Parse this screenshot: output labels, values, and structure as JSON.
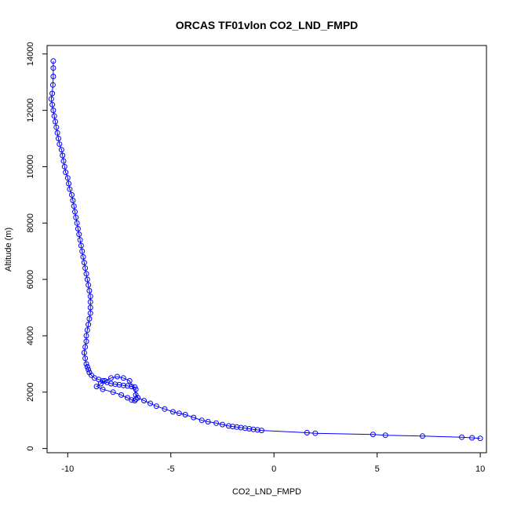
{
  "chart_data": {
    "type": "scatter",
    "title": "ORCAS TF01vlon CO2_LND_FMPD",
    "xlabel": "CO2_LND_FMPD",
    "ylabel": "Altitude (m)",
    "xlim": [
      -11.0,
      10.3
    ],
    "ylim": [
      -150,
      14300
    ],
    "xticks": [
      -10,
      -5,
      0,
      5,
      10
    ],
    "yticks": [
      0,
      2000,
      4000,
      6000,
      8000,
      10000,
      12000,
      14000
    ],
    "grid": false,
    "legend": "none",
    "color": "#0000ff",
    "series": [
      {
        "x": [
          -10.7,
          -10.7,
          -10.7,
          -10.72,
          -10.75,
          -10.8,
          -10.75,
          -10.7,
          -10.65,
          -10.6,
          -10.55,
          -10.5,
          -10.45,
          -10.4,
          -10.3,
          -10.25,
          -10.2,
          -10.15,
          -10.1,
          -10.0,
          -9.95,
          -9.9,
          -9.8,
          -9.75,
          -9.7,
          -9.65,
          -9.6,
          -9.55,
          -9.5,
          -9.45,
          -9.4,
          -9.35,
          -9.3,
          -9.25,
          -9.2,
          -9.15,
          -9.1,
          -9.05,
          -9.0,
          -8.95,
          -8.9,
          -8.9,
          -8.9,
          -8.9,
          -8.95,
          -9.0,
          -9.05,
          -9.1,
          -9.1,
          -9.15,
          -9.2,
          -9.15,
          -9.1,
          -9.05,
          -9.0,
          -8.95,
          -8.85,
          -8.7,
          -8.5,
          -8.3,
          -8.1,
          -7.9,
          -7.7,
          -7.5,
          -7.3,
          -7.1,
          -6.9,
          -6.75,
          -6.7,
          -6.7,
          -6.7,
          -6.75,
          -6.9,
          -7.1,
          -7.4,
          -7.8,
          -8.3,
          -8.6,
          -8.4,
          -8.2,
          -7.9,
          -7.6,
          -7.3,
          -7.0,
          -6.6,
          -6.3,
          -6.0,
          -5.7,
          -5.3,
          -4.9,
          -4.6,
          -4.3,
          -3.9,
          -3.5,
          -3.2,
          -2.8,
          -2.5,
          -2.2,
          -2.0,
          -1.8,
          -1.6,
          -1.4,
          -1.2,
          -1.0,
          -0.8,
          -0.6,
          1.6,
          2.0,
          4.8,
          5.4,
          7.2,
          9.1,
          9.6,
          10.0
        ],
        "y": [
          13750,
          13500,
          13200,
          12900,
          12600,
          12400,
          12200,
          12000,
          11800,
          11600,
          11400,
          11200,
          11000,
          10800,
          10600,
          10400,
          10200,
          10000,
          9800,
          9600,
          9400,
          9200,
          9000,
          8800,
          8600,
          8400,
          8200,
          8000,
          7800,
          7600,
          7400,
          7200,
          7000,
          6800,
          6600,
          6400,
          6200,
          6000,
          5800,
          5600,
          5400,
          5200,
          5000,
          4800,
          4600,
          4400,
          4200,
          4000,
          3800,
          3600,
          3400,
          3200,
          3000,
          2900,
          2800,
          2700,
          2600,
          2500,
          2450,
          2400,
          2350,
          2300,
          2280,
          2260,
          2240,
          2220,
          2200,
          2180,
          2100,
          1900,
          1750,
          1700,
          1720,
          1800,
          1900,
          2000,
          2100,
          2200,
          2300,
          2400,
          2500,
          2550,
          2500,
          2400,
          1800,
          1700,
          1600,
          1500,
          1400,
          1300,
          1250,
          1200,
          1100,
          1000,
          950,
          900,
          850,
          800,
          780,
          760,
          740,
          720,
          700,
          680,
          660,
          640,
          560,
          540,
          500,
          470,
          440,
          400,
          380,
          360
        ]
      }
    ]
  }
}
